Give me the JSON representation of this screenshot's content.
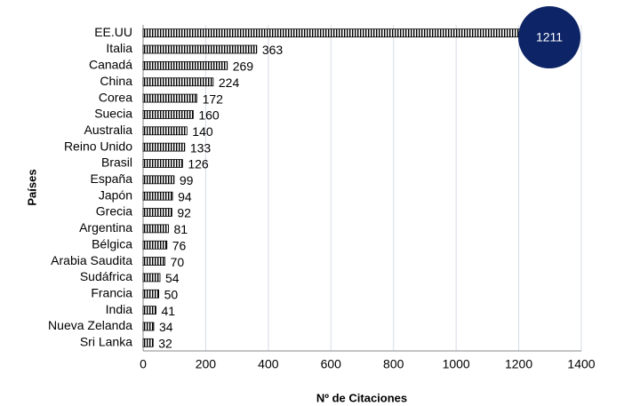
{
  "chart_data": {
    "type": "bar",
    "orientation": "horizontal",
    "xlabel": "Nº de Citaciones",
    "ylabel": "Países",
    "categories": [
      "EE.UU",
      "Italia",
      "Canadá",
      "China",
      "Corea",
      "Suecia",
      "Australia",
      "Reino Unido",
      "Brasil",
      "España",
      "Japón",
      "Grecia",
      "Argentina",
      "Bélgica",
      "Arabia Saudita",
      "Sudáfrica",
      "Francia",
      "India",
      "Nueva Zelanda",
      "Sri Lanka"
    ],
    "values": [
      1211,
      363,
      269,
      224,
      172,
      160,
      140,
      133,
      126,
      99,
      94,
      92,
      81,
      76,
      70,
      54,
      50,
      41,
      34,
      32
    ],
    "color": "#000000",
    "xlim": [
      0,
      1400
    ],
    "xticks": [
      0,
      200,
      400,
      600,
      800,
      1000,
      1200,
      1400
    ],
    "grid": true
  }
}
